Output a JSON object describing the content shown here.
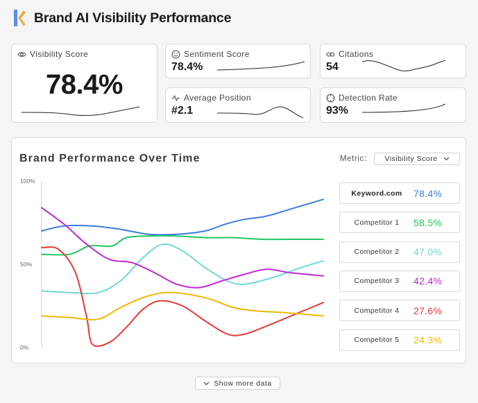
{
  "header": {
    "title": "Brand AI Visibility Performance",
    "logo_icon": "k-logo-icon"
  },
  "kpis": {
    "visibility": {
      "label": "Visibility Score",
      "value": "78.4%",
      "icon": "eye-icon"
    },
    "sentiment": {
      "label": "Sentiment Score",
      "value": "78.4%",
      "icon": "smile-icon"
    },
    "citations": {
      "label": "Citations",
      "value": "54",
      "icon": "link-icon"
    },
    "position": {
      "label": "Average Position",
      "value": "#2.1",
      "icon": "pulse-icon"
    },
    "detection": {
      "label": "Detection Rate",
      "value": "93%",
      "icon": "crosshair-icon"
    }
  },
  "panel": {
    "title": "Brand Performance Over Time",
    "metric_label": "Metric:",
    "metric_value": "Visibility Score"
  },
  "chart_data": {
    "type": "line",
    "y_ticks": [
      "100%",
      "50%",
      "0%"
    ],
    "ylim": [
      0,
      100
    ],
    "xlim": [
      0,
      100
    ],
    "series": [
      {
        "name": "Keyword.com",
        "display": "78.4%",
        "color": "#3b7ddd",
        "bold": true,
        "points": [
          [
            0,
            70
          ],
          [
            8,
            73
          ],
          [
            18,
            73
          ],
          [
            28,
            71
          ],
          [
            38,
            68
          ],
          [
            48,
            68
          ],
          [
            58,
            70
          ],
          [
            65,
            74
          ],
          [
            72,
            77
          ],
          [
            80,
            79
          ],
          [
            90,
            84
          ],
          [
            100,
            89
          ]
        ]
      },
      {
        "name": "Competitor 1",
        "display": "58.5%",
        "color": "#22c55e",
        "points": [
          [
            0,
            56
          ],
          [
            10,
            56
          ],
          [
            17,
            61
          ],
          [
            25,
            61
          ],
          [
            30,
            66
          ],
          [
            38,
            67
          ],
          [
            48,
            67
          ],
          [
            58,
            66
          ],
          [
            68,
            66
          ],
          [
            78,
            65
          ],
          [
            88,
            65
          ],
          [
            100,
            65
          ]
        ]
      },
      {
        "name": "Competitor 2",
        "display": "47.0%",
        "color": "#6fd8d4",
        "points": [
          [
            0,
            34
          ],
          [
            10,
            33
          ],
          [
            20,
            33
          ],
          [
            28,
            40
          ],
          [
            36,
            54
          ],
          [
            43,
            62
          ],
          [
            50,
            58
          ],
          [
            58,
            48
          ],
          [
            66,
            40
          ],
          [
            72,
            38
          ],
          [
            82,
            42
          ],
          [
            92,
            48
          ],
          [
            100,
            52
          ]
        ]
      },
      {
        "name": "Competitor 3",
        "display": "42.4%",
        "color": "#c026d3",
        "points": [
          [
            0,
            84
          ],
          [
            8,
            74
          ],
          [
            16,
            62
          ],
          [
            24,
            53
          ],
          [
            32,
            51
          ],
          [
            40,
            45
          ],
          [
            48,
            38
          ],
          [
            56,
            36
          ],
          [
            64,
            40
          ],
          [
            72,
            44
          ],
          [
            80,
            47
          ],
          [
            88,
            45
          ],
          [
            100,
            43
          ]
        ]
      },
      {
        "name": "Competitor 4",
        "display": "27.6%",
        "color": "#e53935",
        "points": [
          [
            0,
            60
          ],
          [
            6,
            59
          ],
          [
            12,
            45
          ],
          [
            16,
            18
          ],
          [
            18,
            2
          ],
          [
            24,
            3
          ],
          [
            30,
            12
          ],
          [
            36,
            23
          ],
          [
            42,
            28
          ],
          [
            50,
            25
          ],
          [
            58,
            16
          ],
          [
            66,
            8
          ],
          [
            72,
            8
          ],
          [
            80,
            13
          ],
          [
            90,
            20
          ],
          [
            100,
            27
          ]
        ]
      },
      {
        "name": "Competitor 5",
        "display": "24.3%",
        "color": "#f2b705",
        "points": [
          [
            0,
            19
          ],
          [
            10,
            18
          ],
          [
            20,
            17
          ],
          [
            28,
            24
          ],
          [
            36,
            30
          ],
          [
            44,
            33
          ],
          [
            52,
            32
          ],
          [
            60,
            29
          ],
          [
            68,
            24
          ],
          [
            76,
            22
          ],
          [
            86,
            21
          ],
          [
            100,
            19
          ]
        ]
      }
    ]
  },
  "footer": {
    "show_more": "Show more data"
  }
}
